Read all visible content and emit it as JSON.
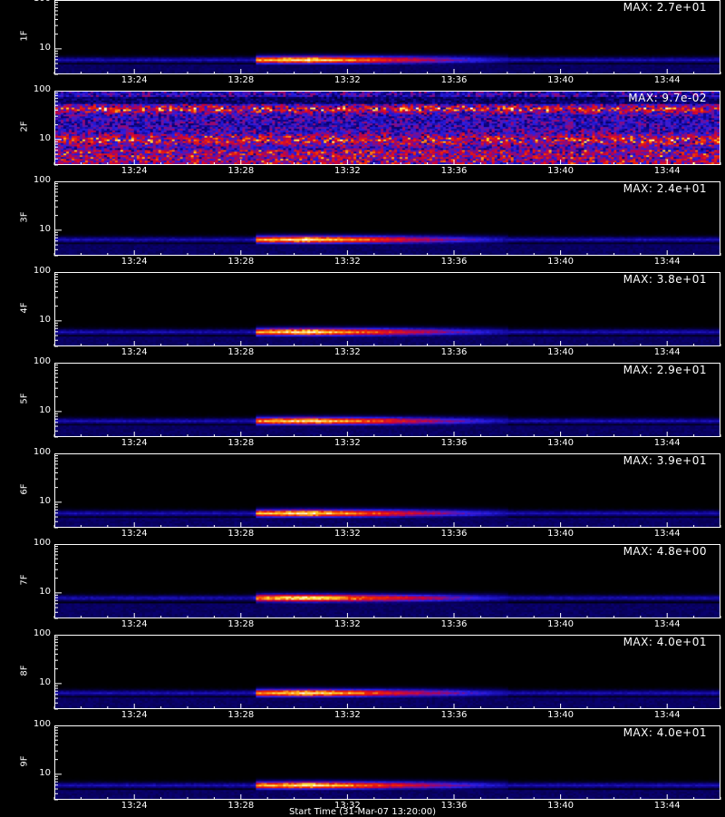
{
  "chart_data": {
    "type": "heatmap",
    "time_ticks": [
      "13:24",
      "13:28",
      "13:32",
      "13:36",
      "13:40",
      "13:44"
    ],
    "time_tick_minutes": [
      24,
      28,
      32,
      36,
      40,
      44
    ],
    "time_range_minutes": [
      21,
      46
    ],
    "y_ticks": [
      "100",
      "10"
    ],
    "y_tick_values": [
      100,
      10
    ],
    "y_range": [
      3,
      100
    ],
    "y_scale": "log",
    "footer": "Start Time (31-Mar-07 13:20:00)",
    "panels": [
      {
        "label": "1F",
        "max": "MAX: 2.7e+01",
        "kind": "burst",
        "band": 6.0
      },
      {
        "label": "2F",
        "max": "MAX: 9.7e-02",
        "kind": "noise",
        "band": 6.0
      },
      {
        "label": "3F",
        "max": "MAX: 2.4e+01",
        "kind": "burst",
        "band": 6.5
      },
      {
        "label": "4F",
        "max": "MAX: 3.8e+01",
        "kind": "burst",
        "band": 6.0
      },
      {
        "label": "5F",
        "max": "MAX: 2.9e+01",
        "kind": "burst",
        "band": 6.5
      },
      {
        "label": "6F",
        "max": "MAX: 3.9e+01",
        "kind": "burst",
        "band": 6.0
      },
      {
        "label": "7F",
        "max": "MAX: 4.8e+00",
        "kind": "burst",
        "band": 8.0
      },
      {
        "label": "8F",
        "max": "MAX: 4.0e+01",
        "kind": "burst",
        "band": 6.5
      },
      {
        "label": "9F",
        "max": "MAX: 4.0e+01",
        "kind": "burst",
        "band": 6.0
      }
    ],
    "burst_start_minute": 28.5,
    "burst_peak_minute": 30.5,
    "burst_decay_end_minute": 38.0
  },
  "colors": {
    "background": "#000000",
    "axes": "#ffffff"
  }
}
